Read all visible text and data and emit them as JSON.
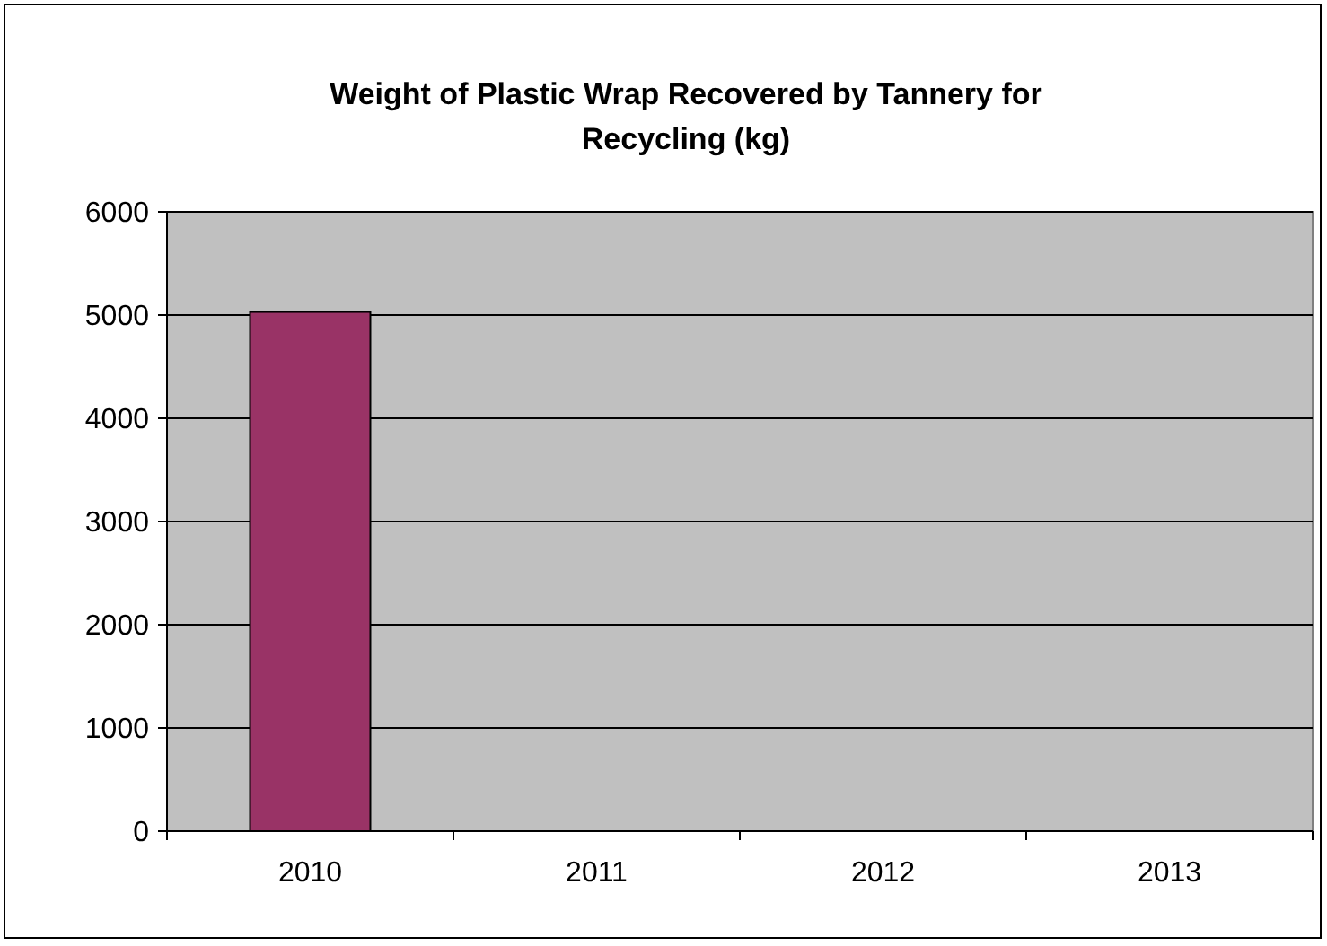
{
  "chart_data": {
    "type": "bar",
    "title": "Weight of Plastic Wrap Recovered by Tannery for Recycling (kg)",
    "categories": [
      "2010",
      "2011",
      "2012",
      "2013"
    ],
    "values": [
      5030,
      null,
      null,
      null
    ],
    "color": "#993366",
    "ylim": [
      0,
      6000
    ],
    "yticks": [
      0,
      1000,
      2000,
      3000,
      4000,
      5000,
      6000
    ],
    "grid": "y"
  }
}
